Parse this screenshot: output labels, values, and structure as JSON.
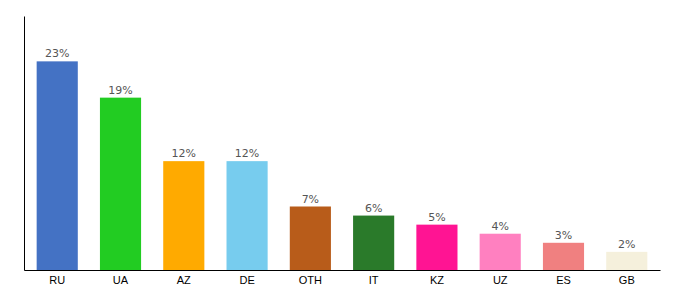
{
  "chart_data": {
    "type": "bar",
    "categories": [
      "RU",
      "UA",
      "AZ",
      "DE",
      "OTH",
      "IT",
      "KZ",
      "UZ",
      "ES",
      "GB"
    ],
    "values": [
      23,
      19,
      12,
      12,
      7,
      6,
      5,
      4,
      3,
      2
    ],
    "value_labels": [
      "23%",
      "19%",
      "12%",
      "12%",
      "7%",
      "6%",
      "5%",
      "4%",
      "3%",
      "2%"
    ],
    "colors": [
      "#4472c4",
      "#22cc22",
      "#ffaa00",
      "#77ccee",
      "#b85c1a",
      "#2a7a2a",
      "#ff1493",
      "#ff80c0",
      "#f08080",
      "#f5f0dc"
    ],
    "ylim": [
      0,
      28
    ],
    "grid": false,
    "data_labels": true,
    "tick_labels": "x"
  }
}
